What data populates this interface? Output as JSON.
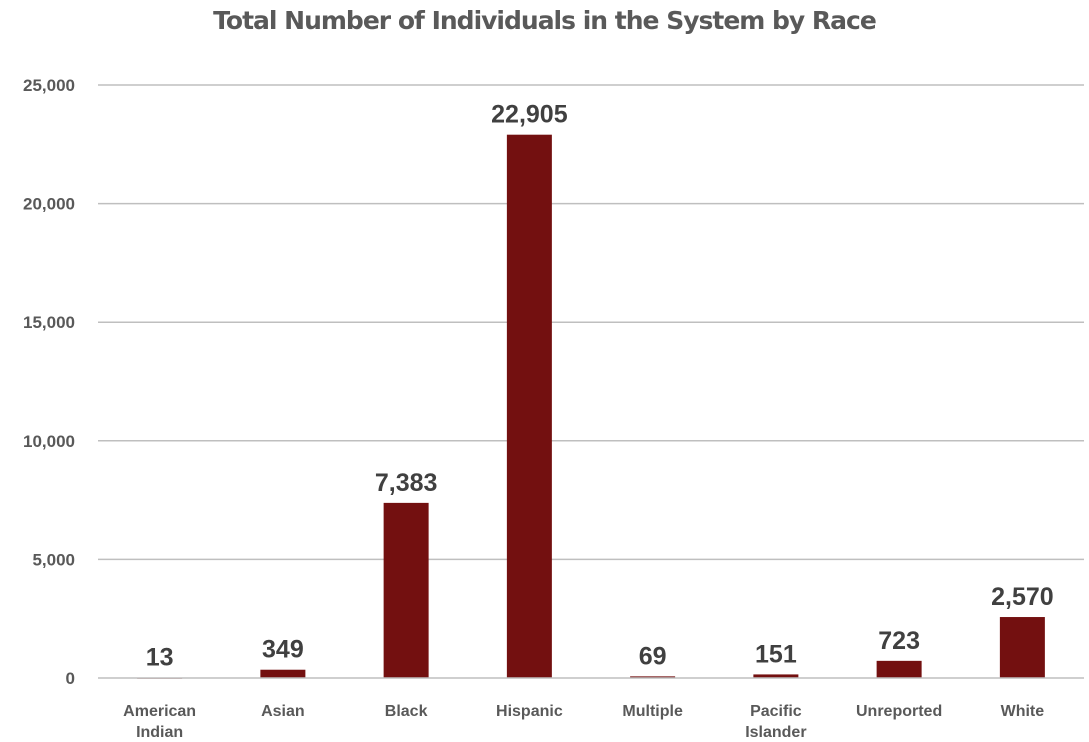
{
  "chart_data": {
    "type": "bar",
    "title": "Total Number of Individuals in the System by Race",
    "xlabel": "",
    "ylabel": "",
    "categories": [
      [
        "American",
        "Indian"
      ],
      [
        "Asian"
      ],
      [
        "Black"
      ],
      [
        "Hispanic"
      ],
      [
        "Multiple"
      ],
      [
        "Pacific",
        "Islander"
      ],
      [
        "Unreported"
      ],
      [
        "White"
      ]
    ],
    "values": [
      13,
      349,
      7383,
      22905,
      69,
      151,
      723,
      2570
    ],
    "data_labels": [
      "13",
      "349",
      "7,383",
      "22,905",
      "69",
      "151",
      "723",
      "2,570"
    ],
    "ylim": [
      0,
      25000
    ],
    "yticks": [
      0,
      5000,
      10000,
      15000,
      20000,
      25000
    ],
    "ytick_labels": [
      "0",
      "5,000",
      "10,000",
      "15,000",
      "20,000",
      "25,000"
    ],
    "grid": true,
    "legend": "none",
    "bar_color": "#731010"
  }
}
